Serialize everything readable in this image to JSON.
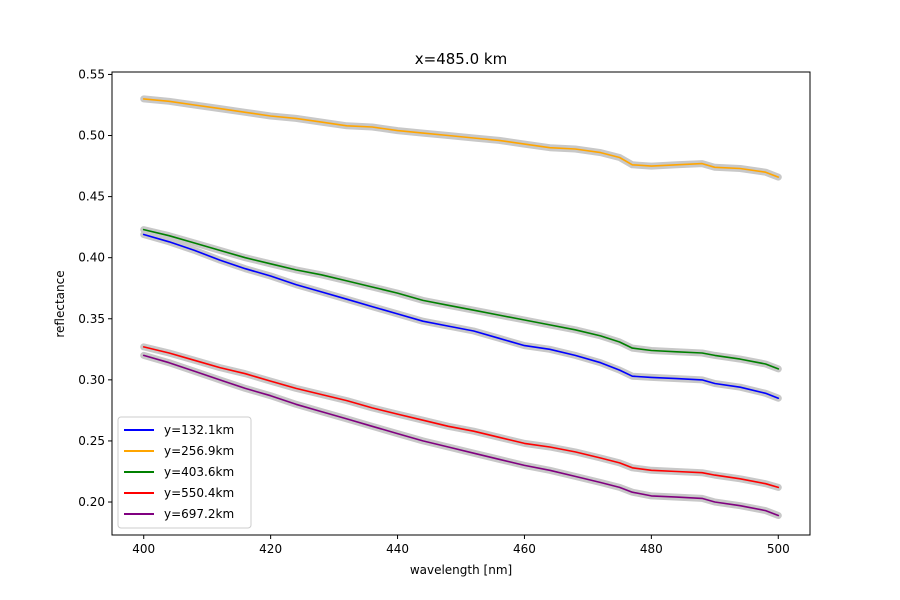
{
  "chart_data": {
    "type": "line",
    "title": "x=485.0 km",
    "xlabel": "wavelength [nm]",
    "ylabel": "reflectance",
    "xlim": [
      395,
      505
    ],
    "ylim": [
      0.173,
      0.552
    ],
    "x_ticks": [
      400,
      420,
      440,
      460,
      480,
      500
    ],
    "x_tick_labels": [
      "400",
      "420",
      "440",
      "460",
      "480",
      "500"
    ],
    "y_ticks": [
      0.2,
      0.25,
      0.3,
      0.35,
      0.4,
      0.45,
      0.5,
      0.55
    ],
    "y_tick_labels": [
      "0.20",
      "0.25",
      "0.30",
      "0.35",
      "0.40",
      "0.45",
      "0.50",
      "0.55"
    ],
    "grid": false,
    "legend_position": "lower-left",
    "band_color": "#c8c8c8",
    "x": [
      400,
      404,
      408,
      412,
      416,
      420,
      424,
      428,
      432,
      436,
      440,
      444,
      448,
      452,
      456,
      460,
      464,
      468,
      472,
      475,
      477,
      480,
      484,
      488,
      490,
      494,
      498,
      500
    ],
    "series": [
      {
        "name": "y=132.1km",
        "color": "#0000ff",
        "values": [
          0.419,
          0.413,
          0.406,
          0.398,
          0.391,
          0.385,
          0.378,
          0.372,
          0.366,
          0.36,
          0.354,
          0.348,
          0.344,
          0.34,
          0.334,
          0.328,
          0.325,
          0.32,
          0.314,
          0.308,
          0.303,
          0.302,
          0.301,
          0.3,
          0.297,
          0.294,
          0.289,
          0.285
        ]
      },
      {
        "name": "y=256.9km",
        "color": "#ffa500",
        "values": [
          0.53,
          0.528,
          0.525,
          0.522,
          0.519,
          0.516,
          0.514,
          0.511,
          0.508,
          0.507,
          0.504,
          0.502,
          0.5,
          0.498,
          0.496,
          0.493,
          0.49,
          0.489,
          0.486,
          0.482,
          0.476,
          0.475,
          0.476,
          0.477,
          0.474,
          0.473,
          0.47,
          0.466
        ]
      },
      {
        "name": "y=403.6km",
        "color": "#008000",
        "values": [
          0.423,
          0.418,
          0.412,
          0.406,
          0.4,
          0.395,
          0.39,
          0.386,
          0.381,
          0.376,
          0.371,
          0.365,
          0.361,
          0.357,
          0.353,
          0.349,
          0.345,
          0.341,
          0.336,
          0.331,
          0.326,
          0.324,
          0.323,
          0.322,
          0.32,
          0.317,
          0.313,
          0.309
        ]
      },
      {
        "name": "y=550.4km",
        "color": "#ff0000",
        "values": [
          0.327,
          0.322,
          0.316,
          0.31,
          0.305,
          0.299,
          0.293,
          0.288,
          0.283,
          0.277,
          0.272,
          0.267,
          0.262,
          0.258,
          0.253,
          0.248,
          0.245,
          0.241,
          0.236,
          0.232,
          0.228,
          0.226,
          0.225,
          0.224,
          0.222,
          0.219,
          0.215,
          0.212
        ]
      },
      {
        "name": "y=697.2km",
        "color": "#800080",
        "values": [
          0.32,
          0.314,
          0.307,
          0.3,
          0.293,
          0.287,
          0.28,
          0.274,
          0.268,
          0.262,
          0.256,
          0.25,
          0.245,
          0.24,
          0.235,
          0.23,
          0.226,
          0.221,
          0.216,
          0.212,
          0.208,
          0.205,
          0.204,
          0.203,
          0.2,
          0.197,
          0.193,
          0.189
        ]
      }
    ]
  }
}
